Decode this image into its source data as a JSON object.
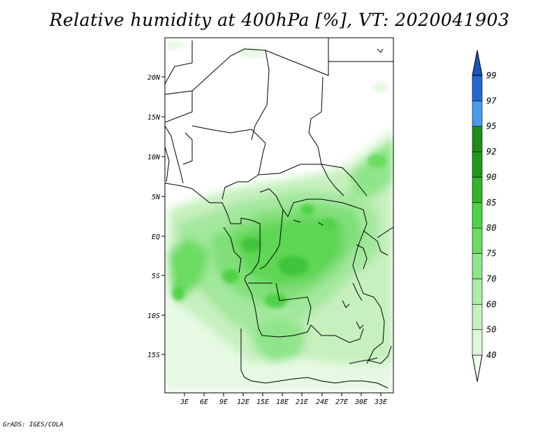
{
  "title": "Relative humidity at 400hPa [%], VT: 2020041903",
  "credit": "GrADS: IGES/COLA",
  "map": {
    "lat_ticks": [
      "20N",
      "15N",
      "10N",
      "5N",
      "EQ",
      "5S",
      "10S",
      "15S"
    ],
    "lon_ticks": [
      "3E",
      "6E",
      "9E",
      "12E",
      "15E",
      "18E",
      "21E",
      "24E",
      "27E",
      "30E",
      "33E"
    ]
  },
  "colorbar": {
    "labels": [
      "40",
      "50",
      "60",
      "70",
      "75",
      "80",
      "85",
      "90",
      "92",
      "95",
      "97",
      "99"
    ],
    "colors": [
      "#f0fcee",
      "#ddf7d8",
      "#c7f0bf",
      "#acebaa",
      "#8fe58a",
      "#6cdc62",
      "#4fd246",
      "#33b52b",
      "#1f9a1c",
      "#1f8c1a",
      "#4a9ce8",
      "#2468d4",
      "#1a55bd"
    ]
  }
}
